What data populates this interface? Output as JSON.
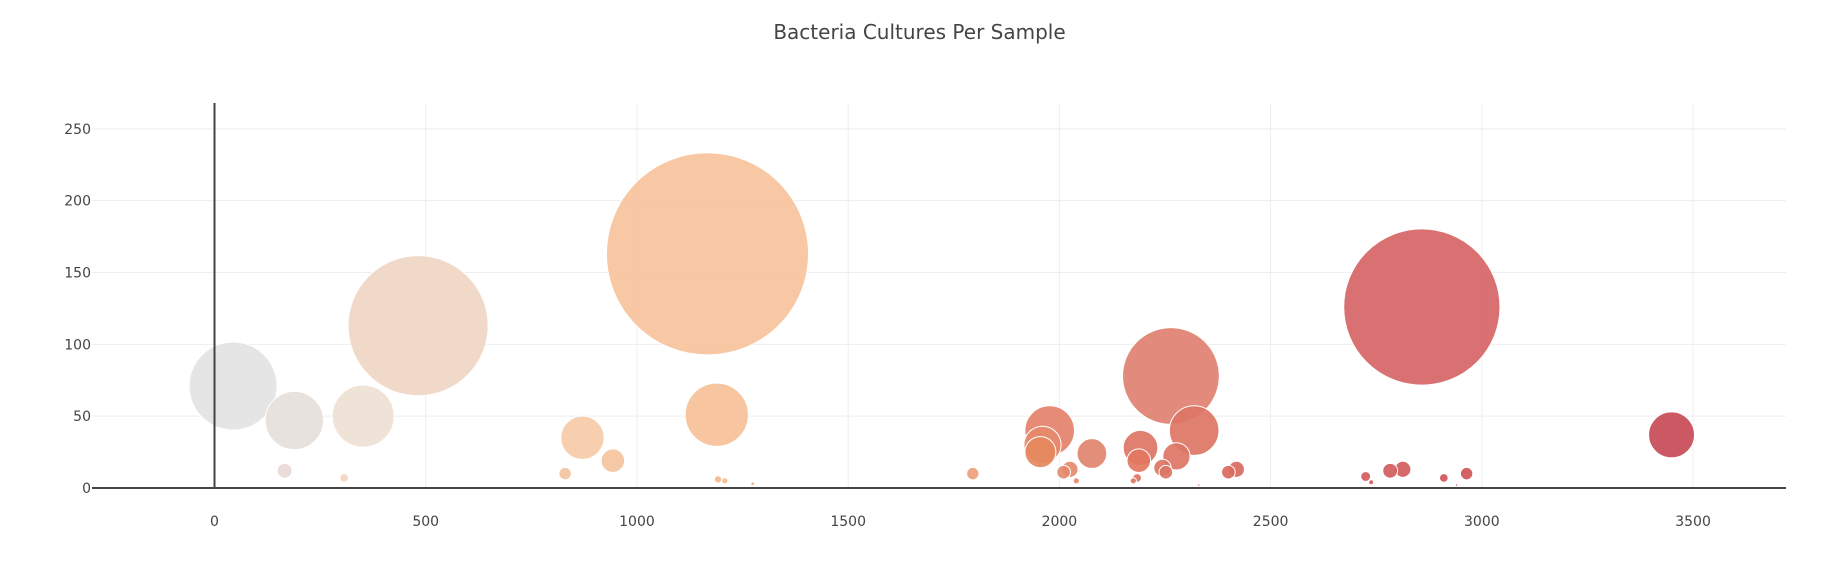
{
  "chart_data": {
    "type": "scatter",
    "title": "Bacteria Cultures Per Sample",
    "xlabel": "",
    "ylabel": "",
    "xlim": [
      -290,
      3720
    ],
    "ylim": [
      0,
      268
    ],
    "x_ticks": [
      0,
      500,
      1000,
      1500,
      2000,
      2500,
      3000,
      3500
    ],
    "y_ticks": [
      0,
      50,
      100,
      150,
      200,
      250
    ],
    "grid": true,
    "legend": "none",
    "points": [
      {
        "x": 44,
        "y": 71,
        "size": 71,
        "color": "#e3e3e3"
      },
      {
        "x": 189,
        "y": 47,
        "size": 47,
        "color": "#e6e0dc"
      },
      {
        "x": 166,
        "y": 12,
        "size": 12,
        "color": "#e7d9d6"
      },
      {
        "x": 352,
        "y": 50,
        "size": 50,
        "color": "#eedfd2"
      },
      {
        "x": 482,
        "y": 113,
        "size": 113,
        "color": "#f0d6c4"
      },
      {
        "x": 307,
        "y": 7,
        "size": 7,
        "color": "#f2d6c0"
      },
      {
        "x": 871,
        "y": 35,
        "size": 35,
        "color": "#f6cba8"
      },
      {
        "x": 943,
        "y": 19,
        "size": 19,
        "color": "#f5c49e"
      },
      {
        "x": 830,
        "y": 10,
        "size": 10,
        "color": "#f5c49e"
      },
      {
        "x": 1167,
        "y": 163,
        "size": 163,
        "color": "#f7c29c"
      },
      {
        "x": 1189,
        "y": 51,
        "size": 51,
        "color": "#f6c098"
      },
      {
        "x": 1192,
        "y": 6,
        "size": 6,
        "color": "#f4b88e"
      },
      {
        "x": 1208,
        "y": 5,
        "size": 5,
        "color": "#f4b88e"
      },
      {
        "x": 1274,
        "y": 3,
        "size": 3,
        "color": "#f2b088"
      },
      {
        "x": 1795,
        "y": 10,
        "size": 10,
        "color": "#ef9f7a"
      },
      {
        "x": 1977,
        "y": 40,
        "size": 40,
        "color": "#e4826a"
      },
      {
        "x": 1960,
        "y": 30,
        "size": 30,
        "color": "#e58a6c"
      },
      {
        "x": 1955,
        "y": 25,
        "size": 25,
        "color": "#e5885f"
      },
      {
        "x": 2010,
        "y": 11,
        "size": 11,
        "color": "#e58a6c"
      },
      {
        "x": 2025,
        "y": 13,
        "size": 13,
        "color": "#e58a6c"
      },
      {
        "x": 2040,
        "y": 5,
        "size": 5,
        "color": "#e58a6c"
      },
      {
        "x": 2077,
        "y": 24,
        "size": 24,
        "color": "#e1846c"
      },
      {
        "x": 2264,
        "y": 78,
        "size": 78,
        "color": "#df8070"
      },
      {
        "x": 2192,
        "y": 28,
        "size": 28,
        "color": "#dc7565"
      },
      {
        "x": 2188,
        "y": 19,
        "size": 19,
        "color": "#e27760"
      },
      {
        "x": 2175,
        "y": 5,
        "size": 5,
        "color": "#dc7565"
      },
      {
        "x": 2184,
        "y": 7,
        "size": 7,
        "color": "#dc7565"
      },
      {
        "x": 2244,
        "y": 14,
        "size": 14,
        "color": "#dc7565"
      },
      {
        "x": 2252,
        "y": 11,
        "size": 11,
        "color": "#dc7565"
      },
      {
        "x": 2277,
        "y": 22,
        "size": 22,
        "color": "#dc7565"
      },
      {
        "x": 2319,
        "y": 40,
        "size": 40,
        "color": "#dc7565"
      },
      {
        "x": 2330,
        "y": 2,
        "size": 2,
        "color": "#d96a5e"
      },
      {
        "x": 2400,
        "y": 11,
        "size": 11,
        "color": "#d96a5e"
      },
      {
        "x": 2419,
        "y": 13,
        "size": 13,
        "color": "#d96a5e"
      },
      {
        "x": 2858,
        "y": 126,
        "size": 126,
        "color": "#d66465"
      },
      {
        "x": 2725,
        "y": 8,
        "size": 8,
        "color": "#d35d5d"
      },
      {
        "x": 2738,
        "y": 4,
        "size": 4,
        "color": "#d35d5d"
      },
      {
        "x": 2783,
        "y": 12,
        "size": 12,
        "color": "#d35d5d"
      },
      {
        "x": 2813,
        "y": 13,
        "size": 13,
        "color": "#d35d5d"
      },
      {
        "x": 2910,
        "y": 7,
        "size": 7,
        "color": "#cf5458"
      },
      {
        "x": 2964,
        "y": 10,
        "size": 10,
        "color": "#cf5458"
      },
      {
        "x": 2940,
        "y": 2,
        "size": 2,
        "color": "#cf5458"
      },
      {
        "x": 3449,
        "y": 37,
        "size": 37,
        "color": "#c84a57"
      }
    ]
  }
}
